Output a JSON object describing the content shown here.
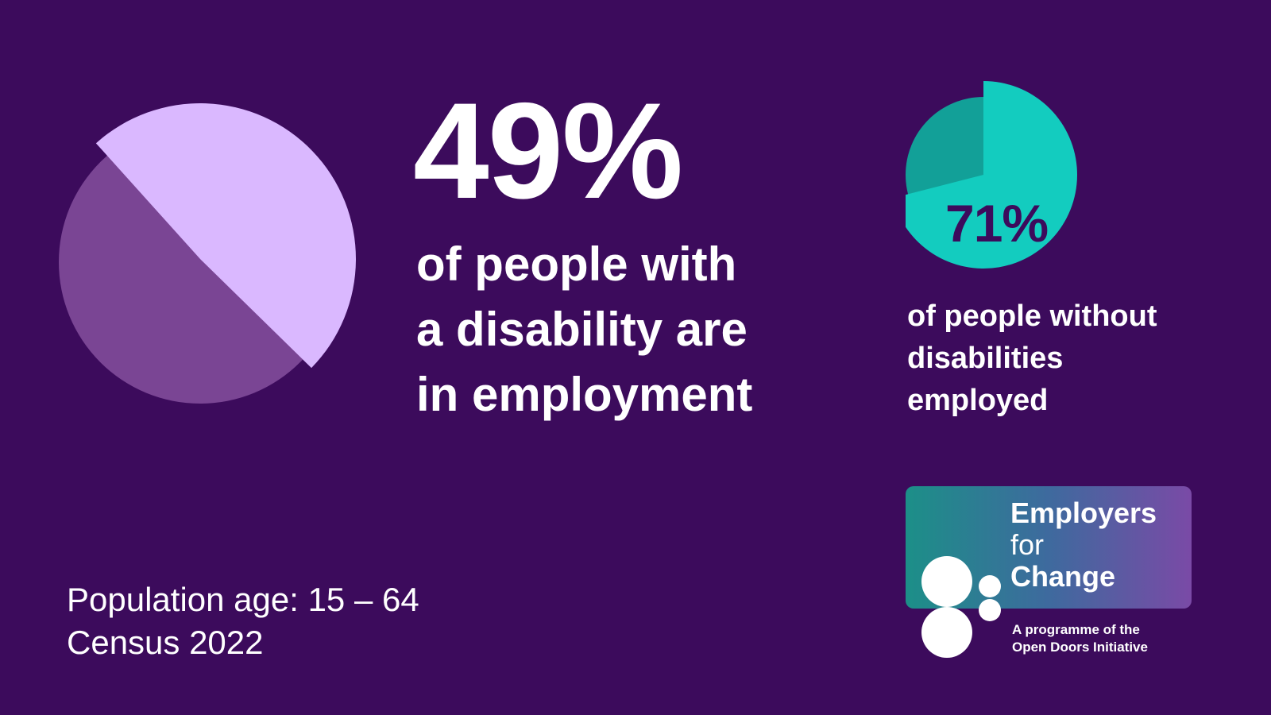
{
  "chart_data": [
    {
      "type": "pie",
      "values": [
        49,
        51
      ],
      "colors": [
        "#dab8ff",
        "#7a4594"
      ]
    },
    {
      "type": "pie",
      "values": [
        71,
        29
      ],
      "colors": [
        "#13ccbf",
        "#12a098"
      ]
    }
  ],
  "headline": {
    "percent": "49%",
    "lines": [
      "of people with",
      "a disability are",
      "in employment"
    ]
  },
  "comparison": {
    "percent": "71%",
    "lines": [
      "of people without",
      "disabilities",
      "employed"
    ]
  },
  "footnote": {
    "lines": [
      "Population age: 15 – 64",
      "Census 2022"
    ]
  },
  "logo": {
    "title_lines": [
      "Employers",
      "for",
      "Change"
    ],
    "sub_lines": [
      "A programme of the",
      "Open Doors Initiative"
    ]
  },
  "colors": {
    "background": "#3c0b5c",
    "light_purple": "#dab8ff",
    "mid_purple": "#7a4594",
    "teal": "#13ccbf",
    "dark_teal": "#12a098"
  }
}
